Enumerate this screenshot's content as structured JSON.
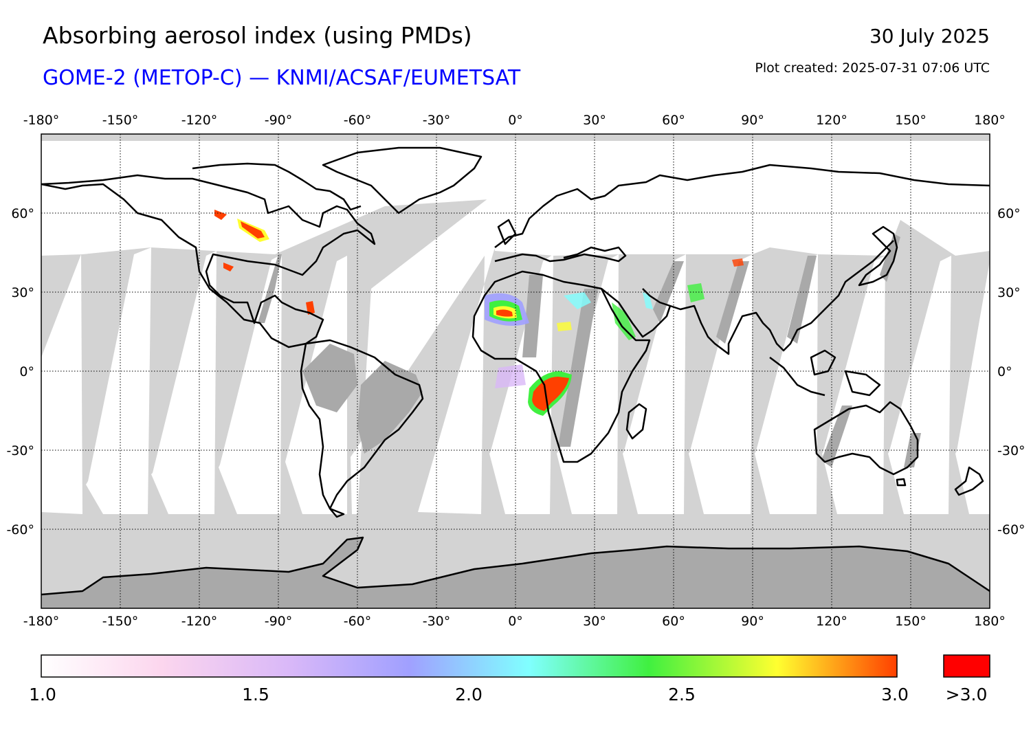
{
  "header": {
    "title": "Absorbing aerosol index (using PMDs)",
    "subtitle": "GOME-2 (METOP-C) — KNMI/ACSAF/EUMETSAT",
    "date": "30 July 2025",
    "created": "Plot created: 2025-07-31 07:06 UTC"
  },
  "map": {
    "projection": "equirectangular",
    "lon_ticks": [
      {
        "value": -180,
        "label": "-180°"
      },
      {
        "value": -150,
        "label": "-150°"
      },
      {
        "value": -120,
        "label": "-120°"
      },
      {
        "value": -90,
        "label": "-90°"
      },
      {
        "value": -60,
        "label": "-60°"
      },
      {
        "value": -30,
        "label": "-30°"
      },
      {
        "value": 0,
        "label": "0°"
      },
      {
        "value": 30,
        "label": "30°"
      },
      {
        "value": 60,
        "label": "60°"
      },
      {
        "value": 90,
        "label": "90°"
      },
      {
        "value": 120,
        "label": "120°"
      },
      {
        "value": 150,
        "label": "150°"
      },
      {
        "value": 180,
        "label": "180°"
      }
    ],
    "lat_ticks": [
      {
        "value": 60,
        "label": "60°"
      },
      {
        "value": 30,
        "label": "30°"
      },
      {
        "value": 0,
        "label": "0°"
      },
      {
        "value": -30,
        "label": "-30°"
      },
      {
        "value": -60,
        "label": "-60°"
      }
    ],
    "lat_range": [
      -90,
      90
    ],
    "lon_range": [
      -180,
      180
    ],
    "colors": {
      "no_data": "#d3d3d3",
      "land_no_data": "#a9a9a9",
      "coast": "#000000",
      "grid": "#000000"
    }
  },
  "colorbar": {
    "range": [
      1.0,
      3.0
    ],
    "tick_labels": [
      "1.0",
      "1.5",
      "2.0",
      "2.5",
      "3.0"
    ],
    "overflow_label": ">3.0",
    "overflow_color": "#ff0000",
    "stops": [
      "#ffffff",
      "#fcd6ee",
      "#d9b8f8",
      "#a0a0ff",
      "#80ffff",
      "#40f040",
      "#ffff30",
      "#ff4000"
    ]
  }
}
